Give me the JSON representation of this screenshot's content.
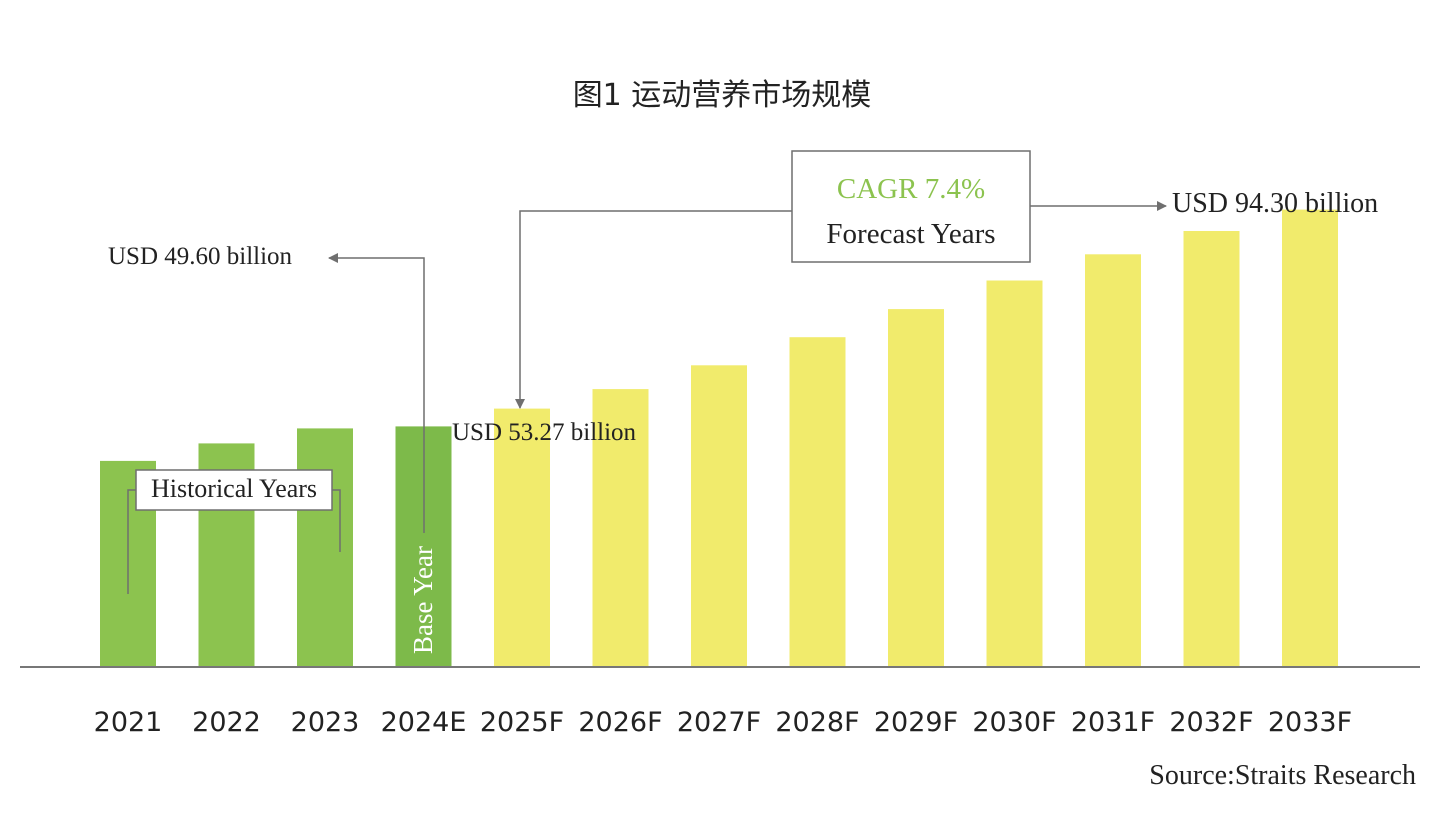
{
  "chart_data": {
    "type": "bar",
    "title": "图1  运动营养市场规模",
    "categories": [
      "2021",
      "2022",
      "2023",
      "2024E",
      "2025F",
      "2026F",
      "2027F",
      "2028F",
      "2029F",
      "2030F",
      "2031F",
      "2032F",
      "2033F"
    ],
    "values": [
      42.5,
      46.1,
      49.2,
      49.6,
      53.27,
      57.3,
      62.2,
      68.0,
      73.8,
      79.7,
      85.1,
      89.9,
      94.3
    ],
    "ylim": [
      0,
      100
    ],
    "grid": false,
    "colors": {
      "historical": "#8cc34f",
      "base": "#7dba4a",
      "forecast": "#f1eb6c",
      "axis": "#777777",
      "cagr_text": "#8cc34f",
      "annotation": "#6f6f6f"
    },
    "annotations": {
      "historical_label": "Historical Years",
      "base_year_label": "Base Year",
      "cagr_label": "CAGR 7.4%",
      "forecast_label": "Forecast Years",
      "value_2024": "USD 49.60 billion",
      "value_2025": "USD 53.27 billion",
      "value_2033": "USD 94.30 billion"
    },
    "source": "Source:Straits Research"
  }
}
